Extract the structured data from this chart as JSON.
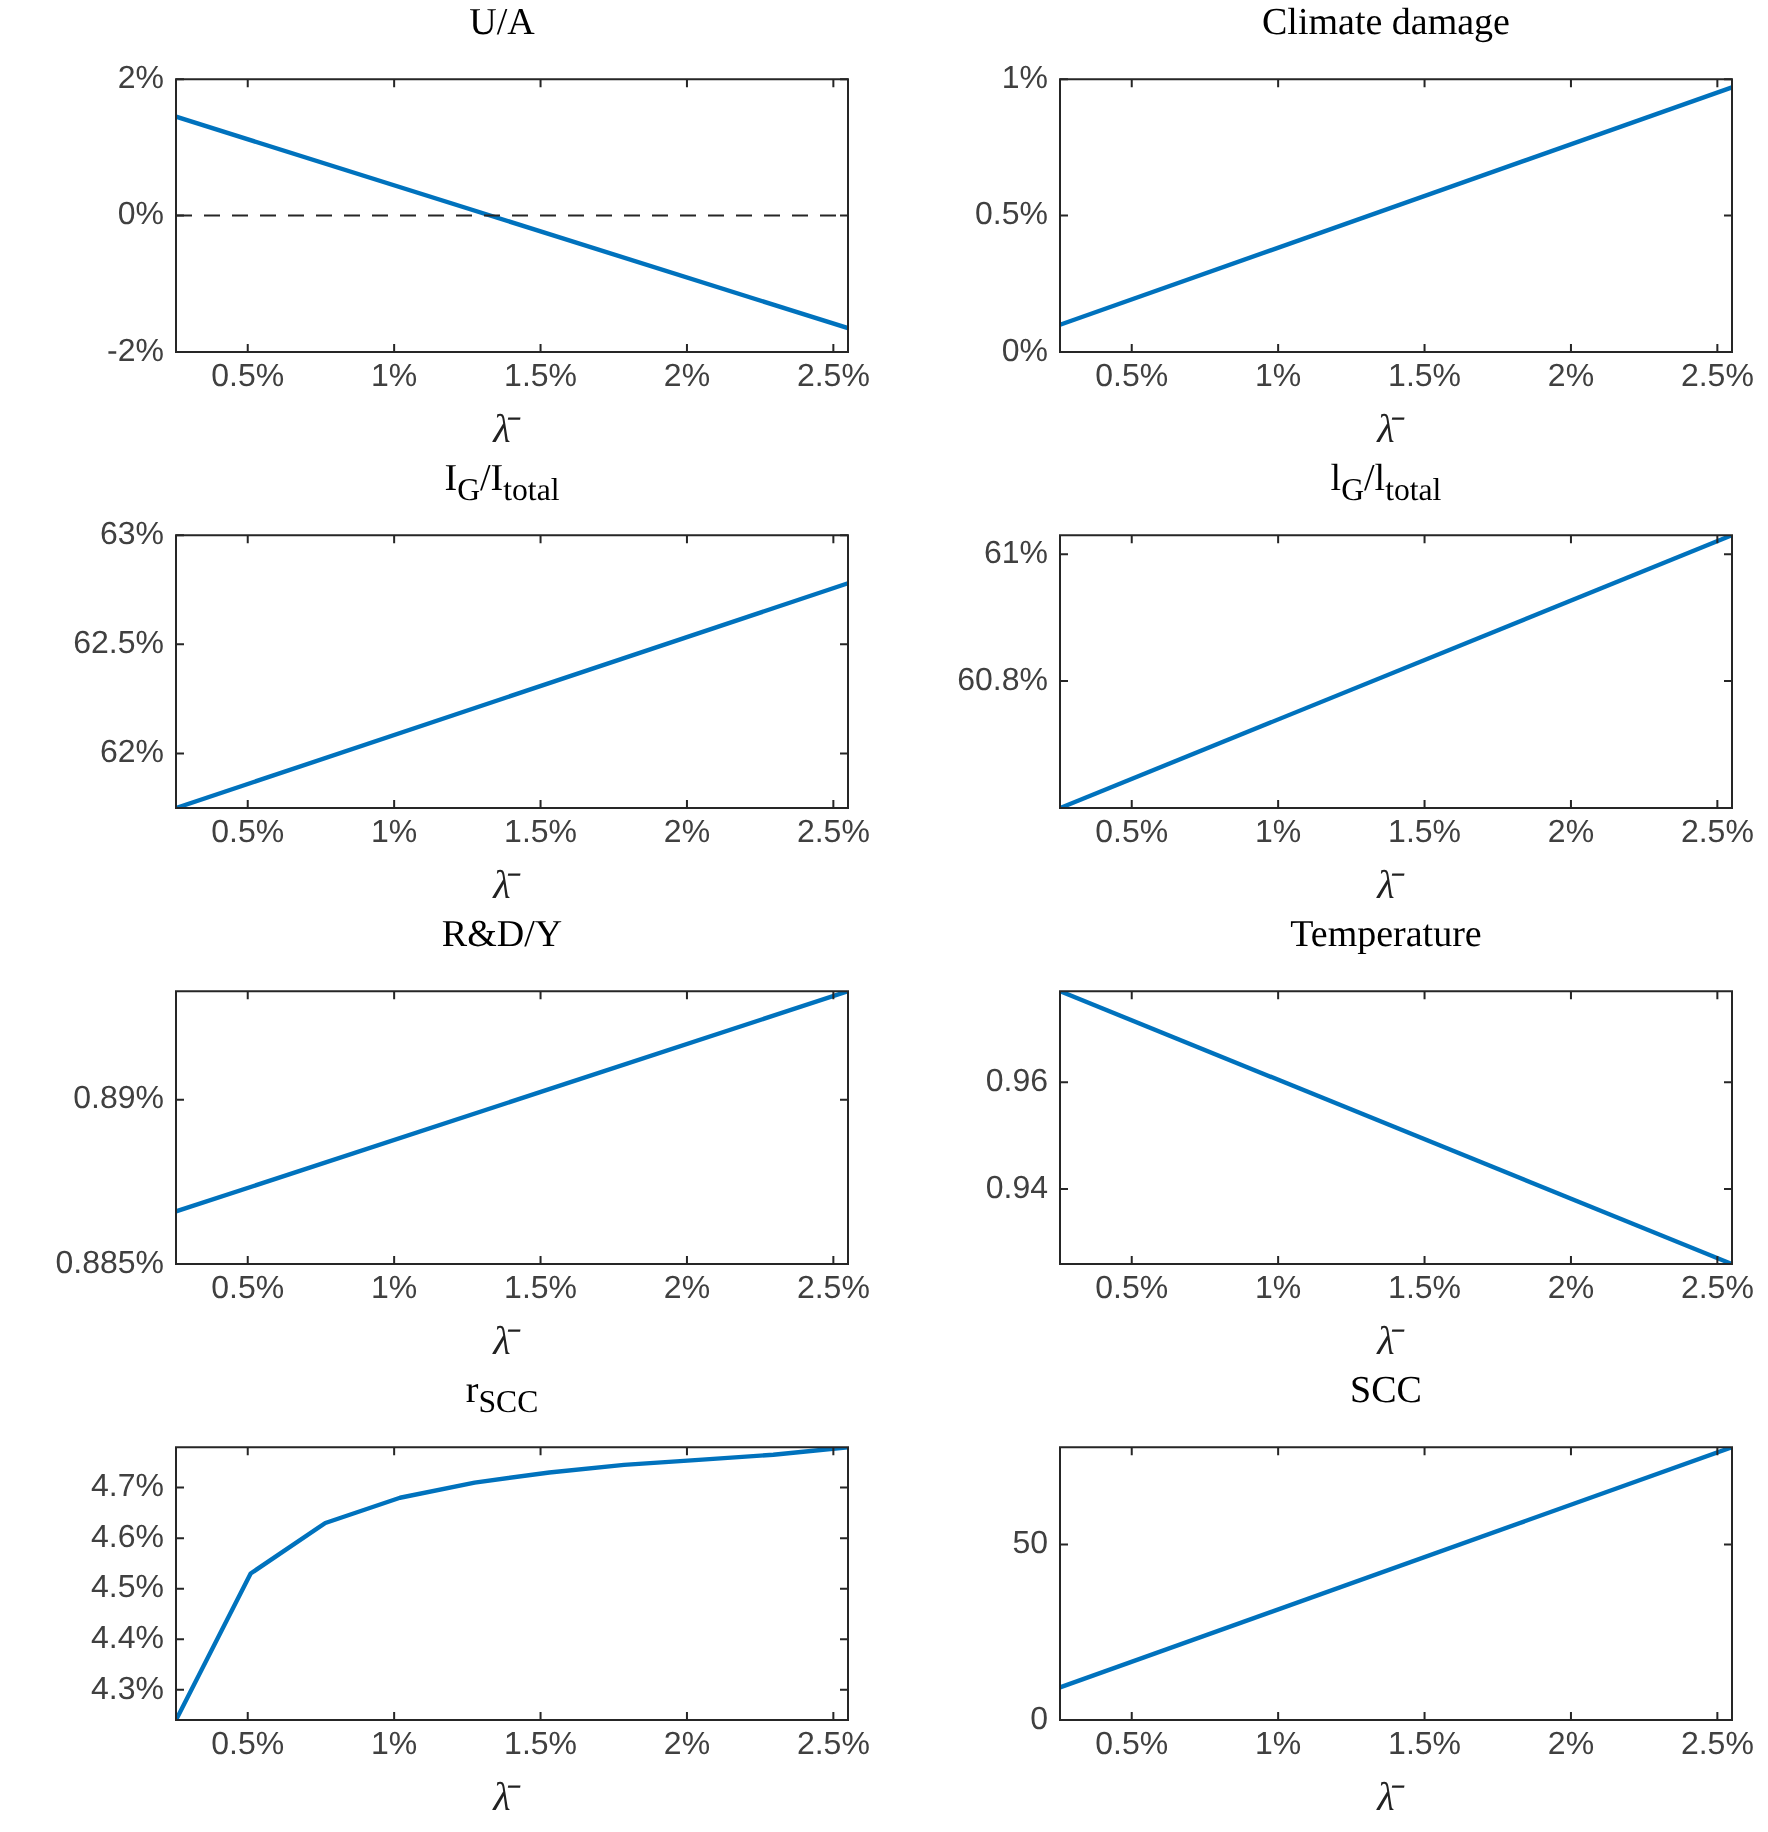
{
  "chart_data": [
    {
      "type": "line",
      "title": "U/A",
      "xlabel": "λ̄",
      "x": [
        0.255,
        2.55
      ],
      "values": [
        1.45,
        -1.65
      ],
      "color": "#0072bd",
      "xlim": [
        0.255,
        2.55
      ],
      "xticks": [
        {
          "value": 0.5,
          "label": "0.5%"
        },
        {
          "value": 1,
          "label": "1%"
        },
        {
          "value": 1.5,
          "label": "1.5%"
        },
        {
          "value": 2,
          "label": "2%"
        },
        {
          "value": 2.5,
          "label": "2.5%"
        }
      ],
      "ylim": [
        -2,
        2
      ],
      "yticks": [
        {
          "value": -2,
          "label": "-2%"
        },
        {
          "value": 0,
          "label": "0%"
        },
        {
          "value": 2,
          "label": "2%"
        }
      ],
      "grid": false,
      "ref_lines": [
        {
          "axis": "y",
          "value": 0,
          "color": "#262626",
          "line_style": "dashed"
        }
      ]
    },
    {
      "type": "line",
      "title": "Climate damage",
      "xlabel": "λ̄",
      "x": [
        0.255,
        2.55
      ],
      "values": [
        0.1,
        0.97
      ],
      "color": "#0072bd",
      "xlim": [
        0.255,
        2.55
      ],
      "xticks": [
        {
          "value": 0.5,
          "label": "0.5%"
        },
        {
          "value": 1,
          "label": "1%"
        },
        {
          "value": 1.5,
          "label": "1.5%"
        },
        {
          "value": 2,
          "label": "2%"
        },
        {
          "value": 2.5,
          "label": "2.5%"
        }
      ],
      "ylim": [
        0,
        1
      ],
      "yticks": [
        {
          "value": 0,
          "label": "0%"
        },
        {
          "value": 0.5,
          "label": "0.5%"
        },
        {
          "value": 1,
          "label": "1%"
        }
      ],
      "grid": false
    },
    {
      "type": "line",
      "title": "I$_{G}$/I$_{total}$",
      "xlabel": "λ̄",
      "x": [
        0.255,
        2.55
      ],
      "values": [
        61.75,
        62.78
      ],
      "color": "#0072bd",
      "xlim": [
        0.255,
        2.55
      ],
      "xticks": [
        {
          "value": 0.5,
          "label": "0.5%"
        },
        {
          "value": 1,
          "label": "1%"
        },
        {
          "value": 1.5,
          "label": "1.5%"
        },
        {
          "value": 2,
          "label": "2%"
        },
        {
          "value": 2.5,
          "label": "2.5%"
        }
      ],
      "ylim": [
        61.75,
        63
      ],
      "yticks": [
        {
          "value": 62,
          "label": "62%"
        },
        {
          "value": 62.5,
          "label": "62.5%"
        },
        {
          "value": 63,
          "label": "63%"
        }
      ],
      "grid": false
    },
    {
      "type": "line",
      "title": "l$_{G}$/l$_{total}$",
      "xlabel": "λ̄",
      "x": [
        0.255,
        2.55
      ],
      "values": [
        60.6,
        61.03
      ],
      "color": "#0072bd",
      "xlim": [
        0.255,
        2.55
      ],
      "xticks": [
        {
          "value": 0.5,
          "label": "0.5%"
        },
        {
          "value": 1,
          "label": "1%"
        },
        {
          "value": 1.5,
          "label": "1.5%"
        },
        {
          "value": 2,
          "label": "2%"
        },
        {
          "value": 2.5,
          "label": "2.5%"
        }
      ],
      "ylim": [
        60.6,
        61.03
      ],
      "yticks": [
        {
          "value": 60.8,
          "label": "60.8%"
        },
        {
          "value": 61,
          "label": "61%"
        }
      ],
      "grid": false
    },
    {
      "type": "line",
      "title": "R&D/Y",
      "xlabel": "λ̄",
      "x": [
        0.255,
        2.55
      ],
      "values": [
        0.8866,
        0.8933
      ],
      "color": "#0072bd",
      "xlim": [
        0.255,
        2.55
      ],
      "xticks": [
        {
          "value": 0.5,
          "label": "0.5%"
        },
        {
          "value": 1,
          "label": "1%"
        },
        {
          "value": 1.5,
          "label": "1.5%"
        },
        {
          "value": 2,
          "label": "2%"
        },
        {
          "value": 2.5,
          "label": "2.5%"
        }
      ],
      "ylim": [
        0.885,
        0.8933
      ],
      "yticks": [
        {
          "value": 0.885,
          "label": "0.885%"
        },
        {
          "value": 0.89,
          "label": "0.89%"
        }
      ],
      "grid": false
    },
    {
      "type": "line",
      "title": "Temperature",
      "xlabel": "λ̄",
      "x": [
        0.255,
        2.55
      ],
      "values": [
        0.977,
        0.926
      ],
      "color": "#0072bd",
      "xlim": [
        0.255,
        2.55
      ],
      "xticks": [
        {
          "value": 0.5,
          "label": "0.5%"
        },
        {
          "value": 1,
          "label": "1%"
        },
        {
          "value": 1.5,
          "label": "1.5%"
        },
        {
          "value": 2,
          "label": "2%"
        },
        {
          "value": 2.5,
          "label": "2.5%"
        }
      ],
      "ylim": [
        0.926,
        0.977
      ],
      "yticks": [
        0.94,
        0.96
      ],
      "grid": false
    },
    {
      "type": "line",
      "title": "r$_{SCC}$",
      "xlabel": "λ̄",
      "x": [
        0.255,
        0.51,
        0.765,
        1.02,
        1.275,
        1.53,
        1.785,
        2.04,
        2.295,
        2.55
      ],
      "values": [
        4.24,
        4.53,
        4.63,
        4.68,
        4.71,
        4.73,
        4.745,
        4.755,
        4.765,
        4.78
      ],
      "color": "#0072bd",
      "xlim": [
        0.255,
        2.55
      ],
      "xticks": [
        {
          "value": 0.5,
          "label": "0.5%"
        },
        {
          "value": 1,
          "label": "1%"
        },
        {
          "value": 1.5,
          "label": "1.5%"
        },
        {
          "value": 2,
          "label": "2%"
        },
        {
          "value": 2.5,
          "label": "2.5%"
        }
      ],
      "ylim": [
        4.24,
        4.78
      ],
      "yticks": [
        {
          "value": 4.3,
          "label": "4.3%"
        },
        {
          "value": 4.4,
          "label": "4.4%"
        },
        {
          "value": 4.5,
          "label": "4.5%"
        },
        {
          "value": 4.6,
          "label": "4.6%"
        },
        {
          "value": 4.7,
          "label": "4.7%"
        }
      ],
      "grid": false
    },
    {
      "type": "line",
      "title": "SCC",
      "xlabel": "λ̄",
      "x": [
        0.255,
        2.55
      ],
      "values": [
        9.3,
        77.7
      ],
      "color": "#0072bd",
      "xlim": [
        0.255,
        2.55
      ],
      "xticks": [
        {
          "value": 0.5,
          "label": "0.5%"
        },
        {
          "value": 1,
          "label": "1%"
        },
        {
          "value": 1.5,
          "label": "1.5%"
        },
        {
          "value": 2,
          "label": "2%"
        },
        {
          "value": 2.5,
          "label": "2.5%"
        }
      ],
      "ylim": [
        0,
        77.7
      ],
      "yticks": [
        0,
        50
      ],
      "grid": false
    }
  ]
}
